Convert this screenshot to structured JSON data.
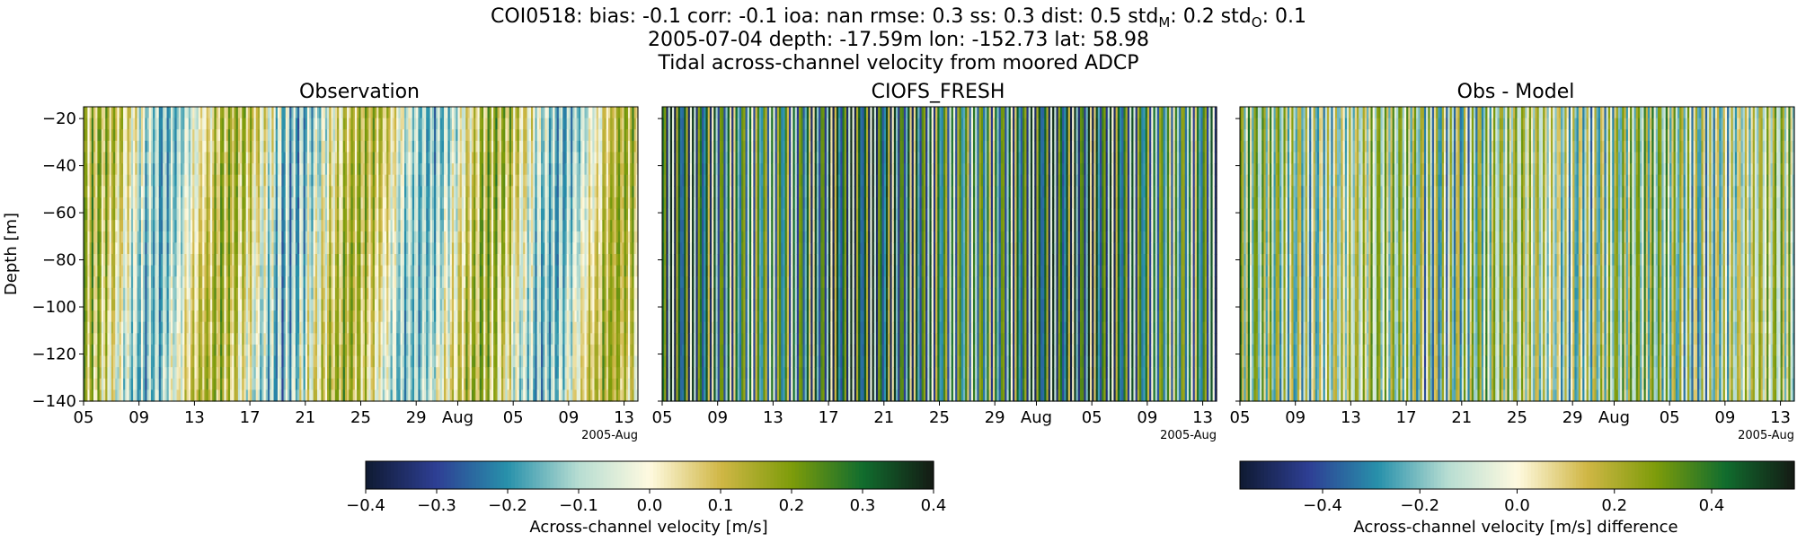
{
  "header": {
    "stats_prefix": "COI0518: bias: -0.1  corr: -0.1  ioa: nan  rmse: 0.3  ss: 0.3  dist: 0.5  std",
    "stats_m_sub": "M",
    "stats_mid": ": 0.2  std",
    "stats_o_sub": "O",
    "stats_suffix": ": 0.1",
    "line2": "2005-07-04 depth: -17.59m lon: -152.73 lat: 58.98",
    "line3": "Tidal across-channel velocity from moored ADCP"
  },
  "colors": {
    "cmap_stops": [
      "#0f1a32",
      "#2e3f94",
      "#2891ab",
      "#b7ddd2",
      "#fffae0",
      "#d0b746",
      "#7e9c0a",
      "#116d2e",
      "#141a14"
    ]
  },
  "chart_data": [
    {
      "type": "heatmap",
      "title": "Observation",
      "ylabel": "Depth [m]",
      "xlabel": "",
      "ylim": [
        -140,
        -15
      ],
      "yticks": [
        -20,
        -40,
        -60,
        -80,
        -100,
        -120,
        -140
      ],
      "x_range_days": [
        0,
        40
      ],
      "xticks": [
        {
          "day": 0,
          "label": "05"
        },
        {
          "day": 4,
          "label": "09"
        },
        {
          "day": 8,
          "label": "13"
        },
        {
          "day": 12,
          "label": "17"
        },
        {
          "day": 16,
          "label": "21"
        },
        {
          "day": 20,
          "label": "25"
        },
        {
          "day": 24,
          "label": "29"
        },
        {
          "day": 27,
          "label": "Aug"
        },
        {
          "day": 31,
          "label": "05"
        },
        {
          "day": 35,
          "label": "09"
        },
        {
          "day": 39,
          "label": "13"
        }
      ],
      "offset_label": "2005-Aug",
      "value_range": [
        -0.4,
        0.4
      ],
      "pattern": {
        "tidal_amplitude": 0.12,
        "tidal_period_days": 0.52,
        "lowfreq_amplitude": 0.14,
        "lowfreq_period_days": 9.5,
        "lowfreq_phase": 0.6,
        "depth_shear": 0.35,
        "spring_neap_mod": 0.35,
        "noise": 0.05,
        "seed": 7
      }
    },
    {
      "type": "heatmap",
      "title": "CIOFS_FRESH",
      "ylim": [
        -140,
        -15
      ],
      "yticks": [
        -20,
        -40,
        -60,
        -80,
        -100,
        -120,
        -140
      ],
      "x_range_days": [
        0,
        40
      ],
      "xticks": [
        {
          "day": 0,
          "label": "05"
        },
        {
          "day": 4,
          "label": "09"
        },
        {
          "day": 8,
          "label": "13"
        },
        {
          "day": 12,
          "label": "17"
        },
        {
          "day": 16,
          "label": "21"
        },
        {
          "day": 20,
          "label": "25"
        },
        {
          "day": 24,
          "label": "29"
        },
        {
          "day": 27,
          "label": "Aug"
        },
        {
          "day": 31,
          "label": "05"
        },
        {
          "day": 35,
          "label": "09"
        },
        {
          "day": 39,
          "label": "13"
        }
      ],
      "offset_label": "2005-Aug",
      "value_range": [
        -0.4,
        0.4
      ],
      "pattern": {
        "tidal_amplitude": 0.38,
        "tidal_period_days": 0.52,
        "lowfreq_amplitude": 0.0,
        "lowfreq_period_days": 9.5,
        "lowfreq_phase": 0.0,
        "depth_shear": 0.02,
        "spring_neap_mod": 0.3,
        "noise": 0.02,
        "seed": 19
      }
    },
    {
      "type": "heatmap",
      "title": "Obs - Model",
      "ylim": [
        -140,
        -15
      ],
      "yticks": [
        -20,
        -40,
        -60,
        -80,
        -100,
        -120,
        -140
      ],
      "x_range_days": [
        0,
        40
      ],
      "xticks": [
        {
          "day": 0,
          "label": "05"
        },
        {
          "day": 4,
          "label": "09"
        },
        {
          "day": 8,
          "label": "13"
        },
        {
          "day": 12,
          "label": "17"
        },
        {
          "day": 16,
          "label": "21"
        },
        {
          "day": 20,
          "label": "25"
        },
        {
          "day": 24,
          "label": "29"
        },
        {
          "day": 27,
          "label": "Aug"
        },
        {
          "day": 31,
          "label": "05"
        },
        {
          "day": 35,
          "label": "09"
        },
        {
          "day": 39,
          "label": "13"
        }
      ],
      "offset_label": "2005-Aug",
      "value_range": [
        -0.57,
        0.57
      ],
      "pattern": {
        "tidal_amplitude": 0.32,
        "tidal_period_days": 0.52,
        "lowfreq_amplitude": 0.08,
        "lowfreq_period_days": 9.5,
        "lowfreq_phase": 0.6,
        "depth_shear": 0.2,
        "spring_neap_mod": 0.3,
        "noise": 0.05,
        "seed": 31
      }
    }
  ],
  "colorbars": [
    {
      "label": "Across-channel velocity [m/s]",
      "range": [
        -0.4,
        0.4
      ],
      "ticks": [
        {
          "value": -0.4,
          "label": "−0.4"
        },
        {
          "value": -0.3,
          "label": "−0.3"
        },
        {
          "value": -0.2,
          "label": "−0.2"
        },
        {
          "value": -0.1,
          "label": "−0.1"
        },
        {
          "value": 0.0,
          "label": "0.0"
        },
        {
          "value": 0.1,
          "label": "0.1"
        },
        {
          "value": 0.2,
          "label": "0.2"
        },
        {
          "value": 0.3,
          "label": "0.3"
        },
        {
          "value": 0.4,
          "label": "0.4"
        }
      ]
    },
    {
      "label": "Across-channel velocity [m/s] difference",
      "range": [
        -0.57,
        0.57
      ],
      "ticks": [
        {
          "value": -0.4,
          "label": "−0.4"
        },
        {
          "value": -0.2,
          "label": "−0.2"
        },
        {
          "value": 0.0,
          "label": "0.0"
        },
        {
          "value": 0.2,
          "label": "0.2"
        },
        {
          "value": 0.4,
          "label": "0.4"
        }
      ]
    }
  ]
}
